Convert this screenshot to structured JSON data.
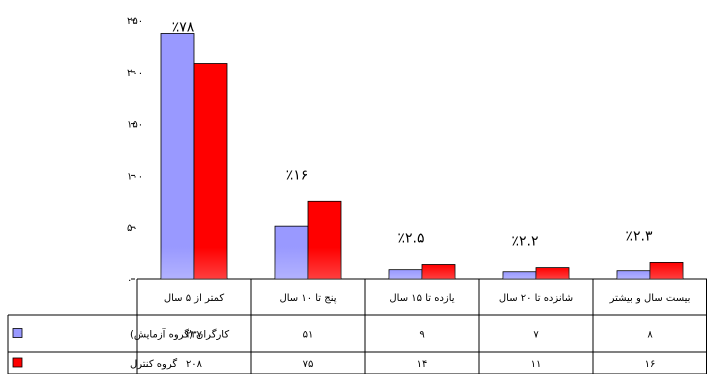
{
  "chart_data": {
    "type": "bar",
    "categories": [
      "کمتر از ۵ سال",
      "پنج تا ۱۰ سال",
      "یازده تا ۱۵ سال",
      "شانزده تا ۲۰ سال",
      "بیست سال و بیشتر"
    ],
    "series": [
      {
        "name": "کارگران (گروه آزمایش)",
        "color": "#9999ff",
        "values": [
          237,
          51,
          9,
          7,
          8
        ],
        "labels": [
          "۲۳۷",
          "۵۱",
          "۹",
          "۷",
          "۸"
        ]
      },
      {
        "name": "گروه کنترل",
        "color": "#ff0000",
        "values": [
          208,
          75,
          14,
          11,
          16
        ],
        "labels": [
          "۲۰۸",
          "۷۵",
          "۱۴",
          "۱۱",
          "۱۶"
        ]
      }
    ],
    "annotations": [
      "٪۷۸",
      "٪۱۶",
      "٪۲.۵",
      "٪۲.۲",
      "٪۲.۳"
    ],
    "ylim": [
      0,
      250
    ],
    "yticks": [
      0,
      50,
      100,
      150,
      200,
      250
    ],
    "ytick_labels": [
      "۰",
      "۵۰",
      "۱۰۰",
      "۱۵۰",
      "۲۰۰",
      "۲۵۰"
    ],
    "grid": false,
    "legend": "data-table-left"
  }
}
